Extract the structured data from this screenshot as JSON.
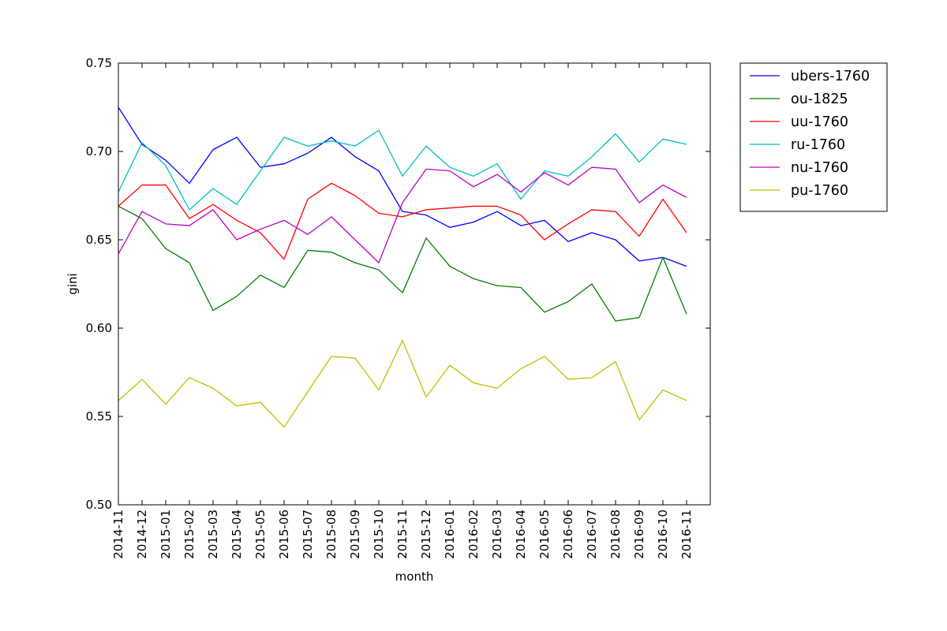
{
  "chart_data": {
    "type": "line",
    "title": "",
    "xlabel": "month",
    "ylabel": "gini",
    "ylim": [
      0.5,
      0.75
    ],
    "yticks": [
      "0.50",
      "0.55",
      "0.60",
      "0.65",
      "0.70",
      "0.75"
    ],
    "grid": false,
    "legend_position": "outside-top-right",
    "x": [
      "2014-11",
      "2014-12",
      "2015-01",
      "2015-02",
      "2015-03",
      "2015-04",
      "2015-05",
      "2015-06",
      "2015-07",
      "2015-08",
      "2015-09",
      "2015-10",
      "2015-11",
      "2015-12",
      "2016-01",
      "2016-02",
      "2016-03",
      "2016-04",
      "2016-05",
      "2016-06",
      "2016-07",
      "2016-08",
      "2016-09",
      "2016-10",
      "2016-11"
    ],
    "series": [
      {
        "name": "ubers-1760",
        "color": "#0000ff",
        "values": [
          0.725,
          0.704,
          0.695,
          0.682,
          0.701,
          0.708,
          0.691,
          0.693,
          0.699,
          0.708,
          0.697,
          0.689,
          0.666,
          0.664,
          0.657,
          0.66,
          0.666,
          0.658,
          0.661,
          0.649,
          0.654,
          0.65,
          0.638,
          0.64,
          0.635
        ]
      },
      {
        "name": "ou-1825",
        "color": "#008000",
        "values": [
          0.669,
          0.662,
          0.645,
          0.637,
          0.61,
          0.618,
          0.63,
          0.623,
          0.644,
          0.643,
          0.637,
          0.633,
          0.62,
          0.651,
          0.635,
          0.628,
          0.624,
          0.623,
          0.609,
          0.615,
          0.625,
          0.604,
          0.606,
          0.64,
          0.608
        ]
      },
      {
        "name": "uu-1760",
        "color": "#ff0000",
        "values": [
          0.669,
          0.681,
          0.681,
          0.662,
          0.67,
          0.661,
          0.654,
          0.639,
          0.673,
          0.682,
          0.675,
          0.665,
          0.663,
          0.667,
          0.668,
          0.669,
          0.669,
          0.664,
          0.65,
          0.659,
          0.667,
          0.666,
          0.652,
          0.673,
          0.654
        ]
      },
      {
        "name": "ru-1760",
        "color": "#00bfbf",
        "values": [
          0.677,
          0.705,
          0.692,
          0.667,
          0.679,
          0.67,
          0.689,
          0.708,
          0.703,
          0.706,
          0.703,
          0.712,
          0.686,
          0.703,
          0.691,
          0.686,
          0.693,
          0.673,
          0.689,
          0.686,
          0.697,
          0.71,
          0.694,
          0.707,
          0.704
        ]
      },
      {
        "name": "nu-1760",
        "color": "#bf00bf",
        "values": [
          0.642,
          0.666,
          0.659,
          0.658,
          0.667,
          0.65,
          0.656,
          0.661,
          0.653,
          0.663,
          0.65,
          0.637,
          0.671,
          0.69,
          0.689,
          0.68,
          0.687,
          0.677,
          0.688,
          0.681,
          0.691,
          0.69,
          0.671,
          0.681,
          0.674
        ]
      },
      {
        "name": "pu-1760",
        "color": "#bfbf00",
        "values": [
          0.559,
          0.571,
          0.557,
          0.572,
          0.566,
          0.556,
          0.558,
          0.544,
          0.564,
          0.584,
          0.583,
          0.565,
          0.593,
          0.561,
          0.579,
          0.569,
          0.566,
          0.577,
          0.584,
          0.571,
          0.572,
          0.581,
          0.548,
          0.565,
          0.559
        ]
      }
    ]
  }
}
